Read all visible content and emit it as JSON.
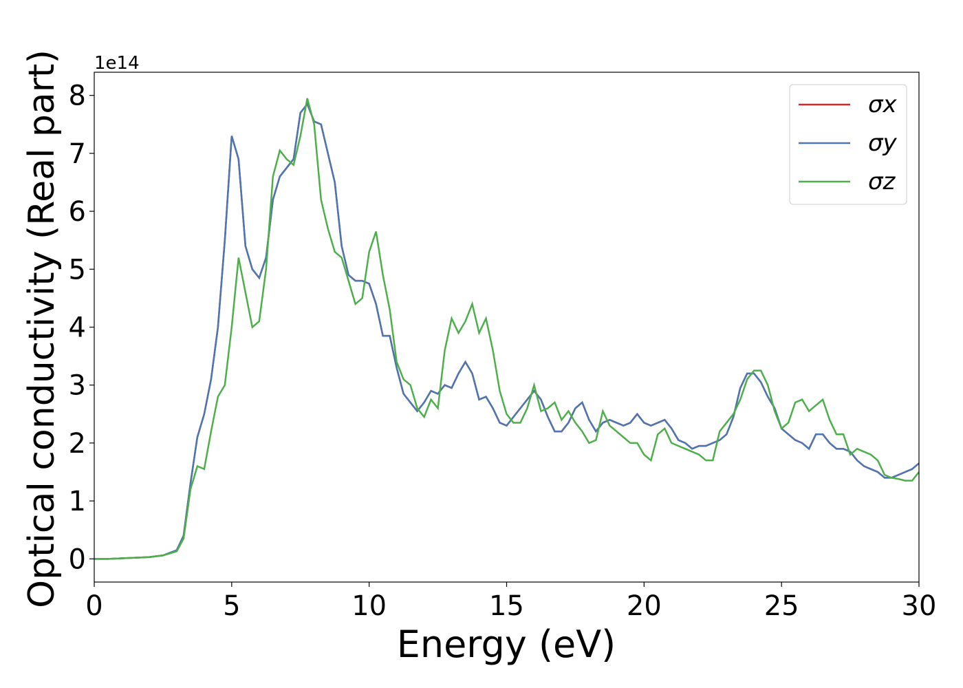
{
  "chart_data": {
    "type": "line",
    "x_label": "Energy (eV)",
    "y_label": "Optical conductivity (Real part)",
    "y_offset_label": "1e14",
    "xlim": [
      0,
      30
    ],
    "ylim": [
      -0.4,
      8.4
    ],
    "xticks": [
      0,
      5,
      10,
      15,
      20,
      25,
      30
    ],
    "yticks": [
      0,
      1,
      2,
      3,
      4,
      5,
      6,
      7,
      8
    ],
    "legend": "upper right",
    "x": [
      0,
      0.5,
      1,
      1.5,
      2,
      2.5,
      3,
      3.25,
      3.5,
      3.75,
      4,
      4.25,
      4.5,
      4.75,
      5,
      5.25,
      5.5,
      5.75,
      6,
      6.25,
      6.5,
      6.75,
      7,
      7.25,
      7.5,
      7.75,
      8,
      8.25,
      8.5,
      8.75,
      9,
      9.25,
      9.5,
      9.75,
      10,
      10.25,
      10.5,
      10.75,
      11,
      11.25,
      11.5,
      11.75,
      12,
      12.25,
      12.5,
      12.75,
      13,
      13.25,
      13.5,
      13.75,
      14,
      14.25,
      14.5,
      14.75,
      15,
      15.25,
      15.5,
      15.75,
      16,
      16.25,
      16.5,
      16.75,
      17,
      17.25,
      17.5,
      17.75,
      18,
      18.25,
      18.5,
      18.75,
      19,
      19.25,
      19.5,
      19.75,
      20,
      20.25,
      20.5,
      20.75,
      21,
      21.25,
      21.5,
      21.75,
      22,
      22.25,
      22.5,
      22.75,
      23,
      23.25,
      23.5,
      23.75,
      24,
      24.25,
      24.5,
      24.75,
      25,
      25.25,
      25.5,
      25.75,
      26,
      26.25,
      26.5,
      26.75,
      27,
      27.25,
      27.5,
      27.75,
      28,
      28.25,
      28.5,
      28.75,
      29,
      29.25,
      29.5,
      29.75,
      30
    ],
    "series": [
      {
        "name": "σx",
        "color": "#d62728",
        "values": [
          0,
          0,
          0.01,
          0.02,
          0.03,
          0.06,
          0.15,
          0.4,
          1.3,
          2.1,
          2.5,
          3.1,
          4.0,
          5.5,
          7.3,
          6.9,
          5.4,
          5.0,
          4.85,
          5.2,
          6.2,
          6.6,
          6.75,
          6.9,
          7.7,
          7.85,
          7.55,
          7.5,
          7.0,
          6.5,
          5.4,
          4.9,
          4.8,
          4.8,
          4.75,
          4.4,
          3.85,
          3.85,
          3.3,
          2.85,
          2.7,
          2.55,
          2.7,
          2.9,
          2.85,
          3.0,
          2.95,
          3.2,
          3.4,
          3.2,
          2.75,
          2.8,
          2.6,
          2.35,
          2.3,
          2.45,
          2.6,
          2.75,
          2.9,
          2.75,
          2.45,
          2.2,
          2.2,
          2.35,
          2.6,
          2.7,
          2.4,
          2.2,
          2.35,
          2.4,
          2.35,
          2.3,
          2.35,
          2.5,
          2.35,
          2.3,
          2.35,
          2.4,
          2.25,
          2.05,
          2.0,
          1.9,
          1.95,
          1.95,
          2.0,
          2.05,
          2.15,
          2.45,
          2.95,
          3.2,
          3.2,
          3.05,
          2.8,
          2.6,
          2.25,
          2.15,
          2.05,
          2.0,
          1.9,
          2.15,
          2.15,
          2.0,
          1.9,
          1.9,
          1.85,
          1.7,
          1.6,
          1.55,
          1.5,
          1.4,
          1.4,
          1.45,
          1.5,
          1.55,
          1.65
        ]
      },
      {
        "name": "σy",
        "color": "#4a77b4",
        "values": [
          0,
          0,
          0.01,
          0.02,
          0.03,
          0.06,
          0.15,
          0.4,
          1.3,
          2.1,
          2.5,
          3.1,
          4.0,
          5.5,
          7.3,
          6.9,
          5.4,
          5.0,
          4.85,
          5.2,
          6.2,
          6.6,
          6.75,
          6.9,
          7.7,
          7.85,
          7.55,
          7.5,
          7.0,
          6.5,
          5.4,
          4.9,
          4.8,
          4.8,
          4.75,
          4.4,
          3.85,
          3.85,
          3.3,
          2.85,
          2.7,
          2.55,
          2.7,
          2.9,
          2.85,
          3.0,
          2.95,
          3.2,
          3.4,
          3.2,
          2.75,
          2.8,
          2.6,
          2.35,
          2.3,
          2.45,
          2.6,
          2.75,
          2.9,
          2.75,
          2.45,
          2.2,
          2.2,
          2.35,
          2.6,
          2.7,
          2.4,
          2.2,
          2.35,
          2.4,
          2.35,
          2.3,
          2.35,
          2.5,
          2.35,
          2.3,
          2.35,
          2.4,
          2.25,
          2.05,
          2.0,
          1.9,
          1.95,
          1.95,
          2.0,
          2.05,
          2.15,
          2.45,
          2.95,
          3.2,
          3.2,
          3.05,
          2.8,
          2.6,
          2.25,
          2.15,
          2.05,
          2.0,
          1.9,
          2.15,
          2.15,
          2.0,
          1.9,
          1.9,
          1.85,
          1.7,
          1.6,
          1.55,
          1.5,
          1.4,
          1.4,
          1.45,
          1.5,
          1.55,
          1.65
        ]
      },
      {
        "name": "σz",
        "color": "#4daf4a",
        "values": [
          0,
          0,
          0.01,
          0.02,
          0.03,
          0.06,
          0.13,
          0.35,
          1.2,
          1.6,
          1.55,
          2.2,
          2.8,
          3.0,
          4.0,
          5.2,
          4.6,
          4.0,
          4.1,
          5.0,
          6.6,
          7.05,
          6.9,
          6.8,
          7.3,
          7.95,
          7.5,
          6.2,
          5.7,
          5.3,
          5.2,
          4.8,
          4.4,
          4.5,
          5.3,
          5.65,
          4.9,
          4.3,
          3.4,
          3.1,
          3.0,
          2.6,
          2.45,
          2.75,
          2.6,
          3.6,
          4.15,
          3.9,
          4.1,
          4.4,
          3.9,
          4.15,
          3.6,
          2.9,
          2.5,
          2.35,
          2.35,
          2.6,
          3.0,
          2.55,
          2.6,
          2.7,
          2.4,
          2.55,
          2.35,
          2.2,
          2.0,
          2.05,
          2.55,
          2.3,
          2.2,
          2.1,
          2.0,
          2.0,
          1.8,
          1.7,
          2.15,
          2.25,
          2.0,
          1.95,
          1.9,
          1.85,
          1.8,
          1.7,
          1.7,
          2.2,
          2.35,
          2.5,
          2.75,
          3.1,
          3.25,
          3.25,
          3.0,
          2.55,
          2.25,
          2.35,
          2.7,
          2.75,
          2.55,
          2.65,
          2.75,
          2.4,
          2.15,
          2.15,
          1.8,
          1.9,
          1.85,
          1.8,
          1.7,
          1.45,
          1.4,
          1.38,
          1.35,
          1.35,
          1.5
        ]
      }
    ]
  }
}
